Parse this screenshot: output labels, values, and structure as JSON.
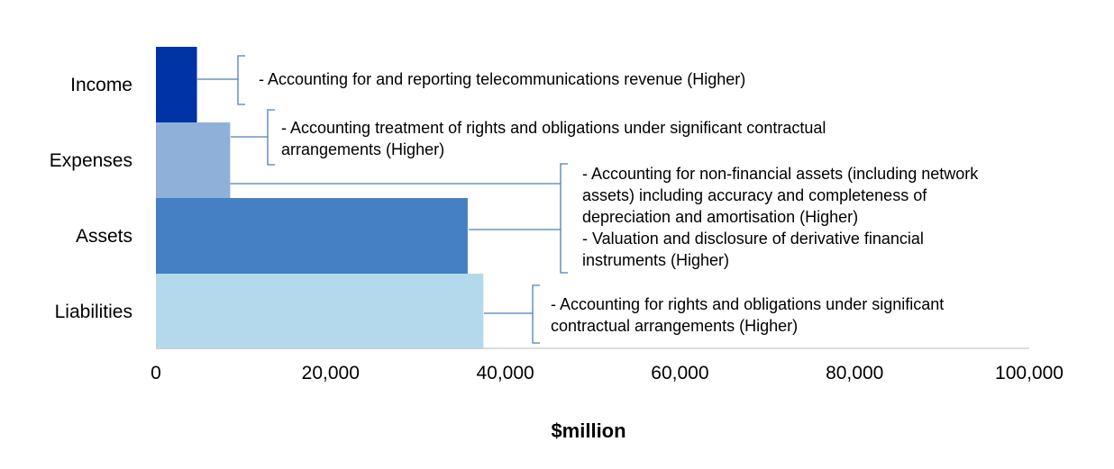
{
  "chart_data": {
    "type": "bar",
    "orientation": "horizontal",
    "categories": [
      "Income",
      "Expenses",
      "Assets",
      "Liabilities"
    ],
    "values": [
      4700,
      8500,
      35700,
      37500
    ],
    "colors": [
      "#0033a6",
      "#8fb0d9",
      "#4580c4",
      "#b4d9ec"
    ],
    "xlabel": "$million",
    "xlim": [
      0,
      100000
    ],
    "xticks": [
      "0",
      "20,000",
      "40,000",
      "60,000",
      "80,000",
      "100,000"
    ],
    "grid": false,
    "connector_color": "#4a7fb8",
    "annotations": [
      {
        "category": "Income",
        "lines": [
          "- Accounting for and reporting telecommunications revenue (Higher)"
        ]
      },
      {
        "category": "Expenses",
        "lines": [
          "- Accounting treatment of rights and obligations under significant contractual",
          "arrangements (Higher)"
        ]
      },
      {
        "category": "Assets",
        "lines": [
          "- Accounting for non-financial assets (including network",
          "assets) including accuracy and completeness of",
          "depreciation and amortisation (Higher)",
          "- Valuation and disclosure of derivative financial",
          "instruments (Higher)"
        ]
      },
      {
        "category": "Liabilities",
        "lines": [
          "- Accounting for rights and obligations under significant",
          "contractual arrangements (Higher)"
        ]
      }
    ]
  }
}
